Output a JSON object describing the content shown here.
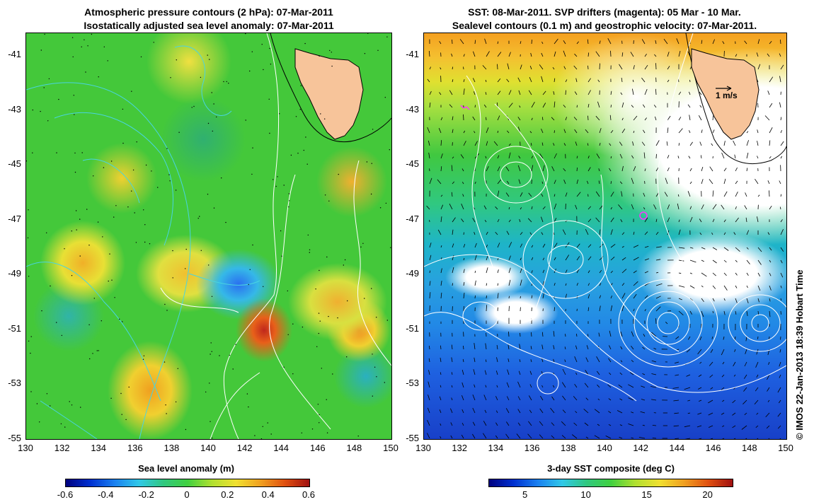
{
  "left_panel": {
    "title_line1": "Atmospheric pressure contours (2 hPa): 07-Mar-2011",
    "title_line2": "Isostatically adjusted sea level anomaly: 07-Mar-2011",
    "colorbar_title": "Sea level anomaly (m)",
    "colorbar_ticks": [
      "-0.6",
      "-0.4",
      "-0.2",
      "0",
      "0.2",
      "0.4",
      "0.6"
    ],
    "colorbar_values": [
      -0.6,
      -0.4,
      -0.2,
      0,
      0.2,
      0.4,
      0.6
    ],
    "colorbar_range": [
      -0.6,
      0.6
    ]
  },
  "right_panel": {
    "title_line1": "SST: 08-Mar-2011. SVP drifters (magenta): 05 Mar - 10 Mar.",
    "title_line2": "Sealevel contours (0.1 m) and geostrophic velocity: 07-Mar-2011.",
    "colorbar_title": "3-day SST composite (deg C)",
    "colorbar_ticks": [
      "5",
      "10",
      "15",
      "20"
    ],
    "colorbar_values": [
      5,
      10,
      15,
      20
    ],
    "colorbar_range": [
      2,
      22
    ],
    "scale_arrow_label": "1 m/s"
  },
  "axes": {
    "x_ticks": [
      "130",
      "132",
      "134",
      "136",
      "138",
      "140",
      "142",
      "144",
      "146",
      "148",
      "150"
    ],
    "x_values": [
      130,
      132,
      134,
      136,
      138,
      140,
      142,
      144,
      146,
      148,
      150
    ],
    "y_ticks": [
      "-41",
      "-43",
      "-45",
      "-47",
      "-49",
      "-51",
      "-53",
      "-55"
    ],
    "y_values": [
      -41,
      -43,
      -45,
      -47,
      -49,
      -51,
      -53,
      -55
    ],
    "lon_range": [
      130,
      150
    ],
    "lat_range": [
      -40.2,
      -55
    ]
  },
  "credit": "© IMOS 22-Jan-2013 18:39 Hobart Time",
  "colors": {
    "land": "#f7c49a",
    "ocean_mid": "#3fcf3a",
    "contour_cyan": "#49d4e0",
    "contour_white": "#ffffff",
    "drifter": "#ff33ff"
  }
}
